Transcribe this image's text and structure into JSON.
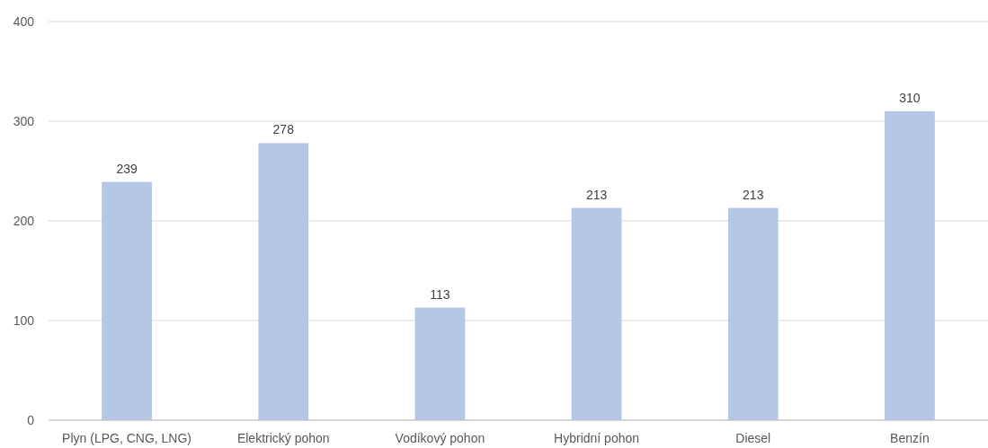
{
  "chart_data": {
    "type": "bar",
    "categories": [
      "Plyn (LPG, CNG, LNG)",
      "Elektrický pohon",
      "Vodíkový pohon",
      "Hybridní pohon",
      "Diesel",
      "Benzín"
    ],
    "values": [
      239,
      278,
      113,
      213,
      213,
      310
    ],
    "color": "#b4c7e7",
    "ylim": [
      0,
      400
    ],
    "yticks": [
      0,
      100,
      200,
      300,
      400
    ],
    "grid": "y",
    "data_labels": true
  }
}
